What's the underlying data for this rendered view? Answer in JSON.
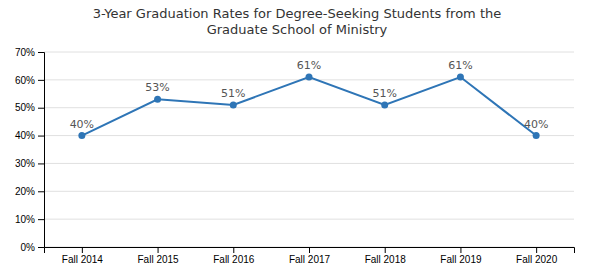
{
  "chart_data": {
    "type": "line",
    "title": "3-Year Graduation Rates for Degree-Seeking Students from the\nGraduate School of Ministry",
    "categories": [
      "Fall 2014",
      "Fall 2015",
      "Fall 2016",
      "Fall 2017",
      "Fall 2018",
      "Fall 2019",
      "Fall 2020"
    ],
    "values": [
      0.4,
      0.53,
      0.51,
      0.61,
      0.51,
      0.61,
      0.4
    ],
    "value_labels": [
      "40%",
      "53%",
      "51%",
      "61%",
      "51%",
      "61%",
      "40%"
    ],
    "color": "#2E75B6",
    "marker": "circle",
    "ylim": [
      0,
      0.7
    ],
    "yticks": [
      {
        "value": 0.0,
        "label": "0%"
      },
      {
        "value": 0.1,
        "label": "10%"
      },
      {
        "value": 0.2,
        "label": "20%"
      },
      {
        "value": 0.3,
        "label": "30%"
      },
      {
        "value": 0.4,
        "label": "40%"
      },
      {
        "value": 0.5,
        "label": "50%"
      },
      {
        "value": 0.6,
        "label": "60%"
      },
      {
        "value": 0.7,
        "label": "70%"
      }
    ],
    "grid": true,
    "data_labels": true
  }
}
